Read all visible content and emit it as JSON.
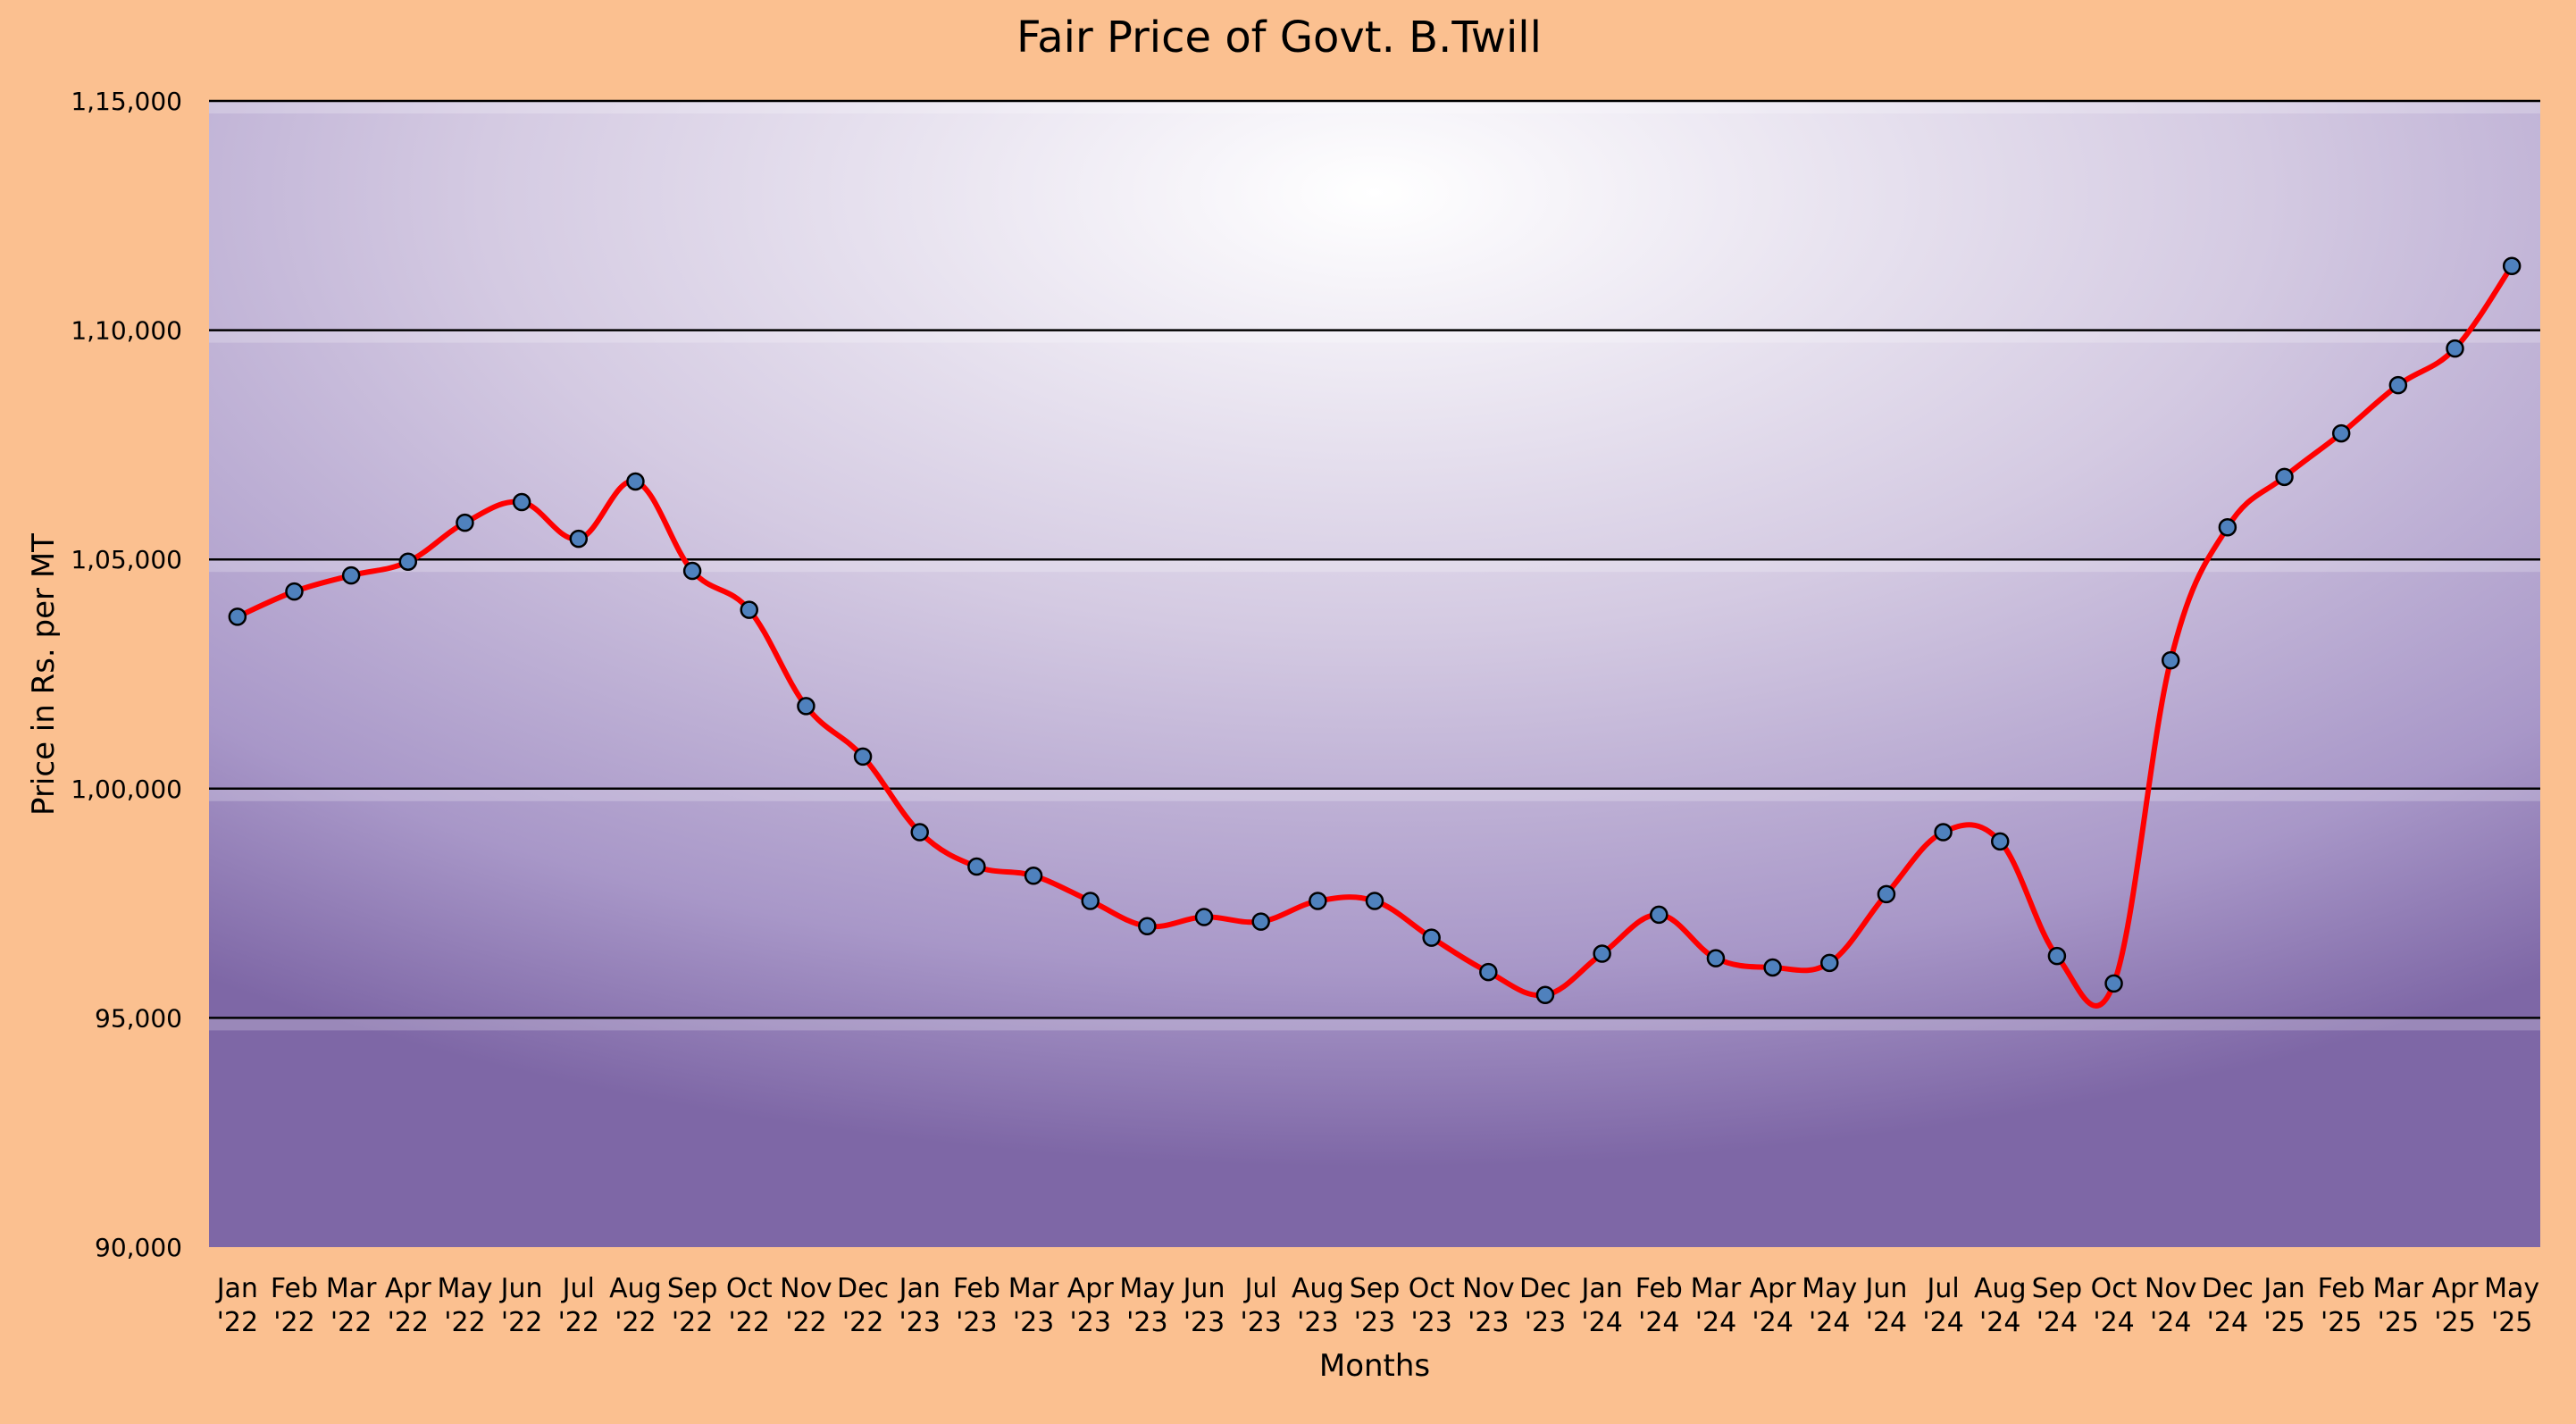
{
  "chart_data": {
    "type": "line",
    "title": "Fair Price of Govt. B.Twill",
    "xlabel": "Months",
    "ylabel": "Price in Rs. per MT",
    "ylim": [
      90000,
      115000
    ],
    "yticks": [
      90000,
      95000,
      100000,
      105000,
      110000,
      115000
    ],
    "ytick_labels": [
      "90,000",
      "95,000",
      "1,00,000",
      "1,05,000",
      "1,10,000",
      "1,15,000"
    ],
    "grid": true,
    "legend": "none",
    "categories": [
      "Jan '22",
      "Feb '22",
      "Mar '22",
      "Apr '22",
      "May '22",
      "Jun '22",
      "Jul '22",
      "Aug '22",
      "Sep '22",
      "Oct '22",
      "Nov '22",
      "Dec '22",
      "Jan '23",
      "Feb '23",
      "Mar '23",
      "Apr '23",
      "May '23",
      "Jun '23",
      "Jul '23",
      "Aug '23",
      "Sep '23",
      "Oct '23",
      "Nov '23",
      "Dec '23",
      "Jan '24",
      "Feb '24",
      "Mar '24",
      "Apr '24",
      "May '24",
      "Jun '24",
      "Jul '24",
      "Aug '24",
      "Sep '24",
      "Oct '24",
      "Nov '24",
      "Dec '24",
      "Jan '25",
      "Feb '25",
      "Mar '25",
      "Apr '25",
      "May '25"
    ],
    "series": [
      {
        "values": [
          103750,
          104300,
          104650,
          104950,
          105800,
          106250,
          105450,
          106700,
          104750,
          103900,
          101800,
          100700,
          99050,
          98300,
          98100,
          97550,
          97000,
          97200,
          97100,
          97550,
          97550,
          96750,
          96000,
          95500,
          96400,
          97250,
          96300,
          96100,
          96200,
          97700,
          99050,
          98850,
          96350,
          95750,
          102800,
          105700,
          106800,
          107750,
          108800,
          109600,
          111400
        ],
        "color": "#FF0000",
        "marker_color": "#4F81BD"
      }
    ]
  }
}
